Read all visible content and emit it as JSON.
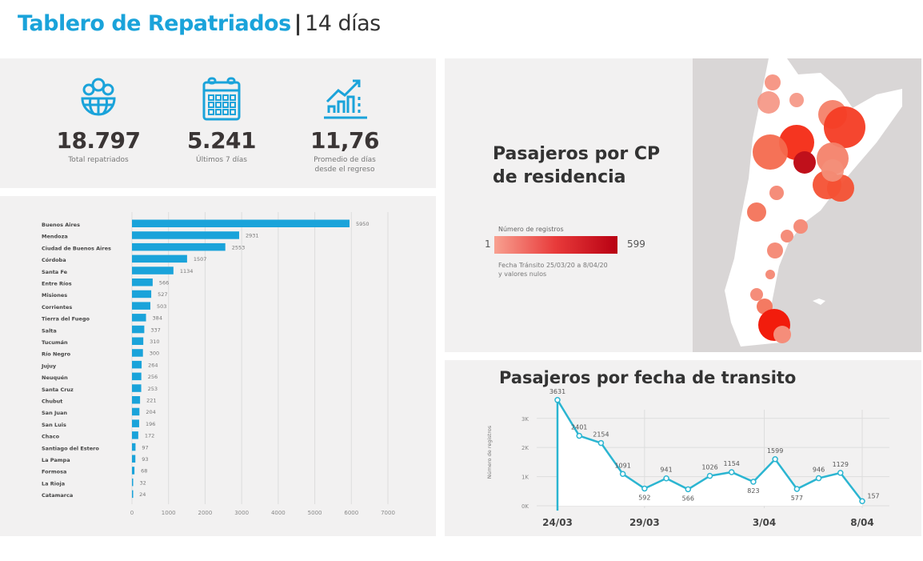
{
  "header": {
    "title": "Tablero de Repatriados",
    "separator": "|",
    "subtitle": "14 días"
  },
  "kpis": [
    {
      "icon": "people-globe-icon",
      "value": "18.797",
      "label": "Total repatriados"
    },
    {
      "icon": "calendar-icon",
      "value": "5.241",
      "label": "Últimos 7 días"
    },
    {
      "icon": "growth-chart-icon",
      "value": "11,76",
      "label": "Promedio de días desde el regreso"
    }
  ],
  "colors": {
    "accent": "#1aa3da",
    "line": "#2bb5d1",
    "map_low": "#f8a090",
    "map_high": "#b80012",
    "panel": "#f2f1f1"
  },
  "map": {
    "title": "Pasajeros por CP de residencia",
    "legend_title": "Número de registros",
    "legend_min": "1",
    "legend_max": "599",
    "legend_note": "Fecha Tránsito 25/03/20 a 8/04/20 y valores nulos"
  },
  "chart_data": [
    {
      "type": "bar",
      "orientation": "horizontal",
      "title": "",
      "categories": [
        "Buenos Aires",
        "Mendoza",
        "Ciudad de Buenos Aires",
        "Córdoba",
        "Santa Fe",
        "Entre Ríos",
        "Misiones",
        "Corrientes",
        "Tierra del Fuego",
        "Salta",
        "Tucumán",
        "Río Negro",
        "Jujuy",
        "Neuquén",
        "Santa Cruz",
        "Chubut",
        "San Juan",
        "San Luis",
        "Chaco",
        "Santiago del Estero",
        "La Pampa",
        "Formosa",
        "La Rioja",
        "Catamarca"
      ],
      "values": [
        5950,
        2931,
        2553,
        1507,
        1134,
        566,
        527,
        503,
        384,
        337,
        310,
        300,
        264,
        256,
        253,
        221,
        204,
        196,
        172,
        97,
        93,
        68,
        32,
        24
      ],
      "xlim": [
        0,
        7000
      ],
      "xticks": [
        "0",
        "1000",
        "2000",
        "3000",
        "4000",
        "5000",
        "6000",
        "7000"
      ],
      "grid": true,
      "color": "#1aa3da"
    },
    {
      "type": "line",
      "title": "Pasajeros por fecha de transito",
      "ylabel": "Número de registros",
      "yticks": [
        "0K",
        "1K",
        "2K",
        "3K"
      ],
      "ylim": [
        0,
        3900
      ],
      "values": [
        3631,
        2401,
        2154,
        1091,
        592,
        941,
        566,
        1026,
        1154,
        823,
        1599,
        577,
        946,
        1129,
        157
      ],
      "xticks": [
        {
          "index": 0,
          "label": "24/03"
        },
        {
          "index": 4,
          "label": "29/03"
        },
        {
          "index": 9.5,
          "label": "3/04"
        },
        {
          "index": 14,
          "label": "8/04"
        }
      ],
      "grid": true,
      "color": "#2bb5d1"
    }
  ]
}
